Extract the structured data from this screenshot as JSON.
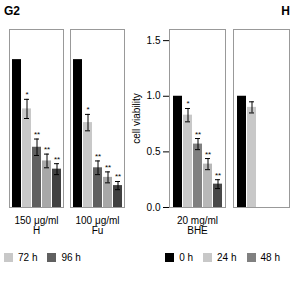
{
  "chart_data": [
    {
      "type": "bar",
      "title": "G2",
      "categories": [
        "150 μg/ml\nH",
        "100 μg/ml\nFu"
      ],
      "series": [
        {
          "color": "#000000",
          "values": [
            1.08,
            1.08
          ],
          "errors": [
            0.0,
            0.0
          ]
        },
        {
          "name": "72 h",
          "color": "#c8c8c8",
          "values": [
            0.72,
            0.62
          ],
          "errors": [
            0.07,
            0.06
          ],
          "annotations": [
            "*",
            "*"
          ]
        },
        {
          "name": "96 h",
          "color": "#606060",
          "values": [
            0.44,
            0.29
          ],
          "errors": [
            0.06,
            0.05
          ],
          "annotations": [
            "**",
            "**"
          ]
        },
        {
          "color": "#a8a8a8",
          "values": [
            0.34,
            0.22
          ],
          "errors": [
            0.05,
            0.04
          ],
          "annotations": [
            "**",
            "**"
          ]
        },
        {
          "color": "#404040",
          "values": [
            0.28,
            0.16
          ],
          "errors": [
            0.04,
            0.03
          ],
          "annotations": [
            "**",
            "**"
          ]
        }
      ],
      "ylim": [
        0,
        1.3
      ],
      "yticks": [],
      "tick_labels": "x",
      "legend": "lower left"
    },
    {
      "type": "bar",
      "title": "H",
      "categories": [
        "20 mg/ml\nBHE",
        null
      ],
      "series": [
        {
          "name": "0 h",
          "color": "#000000",
          "values": [
            1.0,
            1.0
          ],
          "errors": [
            0.0,
            0.0
          ]
        },
        {
          "name": "24 h",
          "color": "#c8c8c8",
          "values": [
            0.83,
            0.9
          ],
          "errors": [
            0.06,
            0.05
          ],
          "annotations": [
            "*",
            null
          ]
        },
        {
          "name": "48 h",
          "color": "#808080",
          "values": [
            0.57,
            null
          ],
          "errors": [
            0.05,
            null
          ],
          "annotations": [
            "**",
            null
          ]
        },
        {
          "color": "#b8b8b8",
          "values": [
            0.39,
            null
          ],
          "errors": [
            0.05,
            null
          ],
          "annotations": [
            "**",
            null
          ]
        },
        {
          "color": "#484848",
          "values": [
            0.21,
            null
          ],
          "errors": [
            0.04,
            null
          ],
          "annotations": [
            "**",
            null
          ]
        }
      ],
      "ylim": [
        0,
        1.6
      ],
      "yticks": [
        {
          "value": 0,
          "label": "0.0"
        },
        0.5,
        {
          "value": 1,
          "label": "1.0"
        },
        1.5
      ],
      "ylabel": "cell viability",
      "legend": "lower right"
    }
  ]
}
